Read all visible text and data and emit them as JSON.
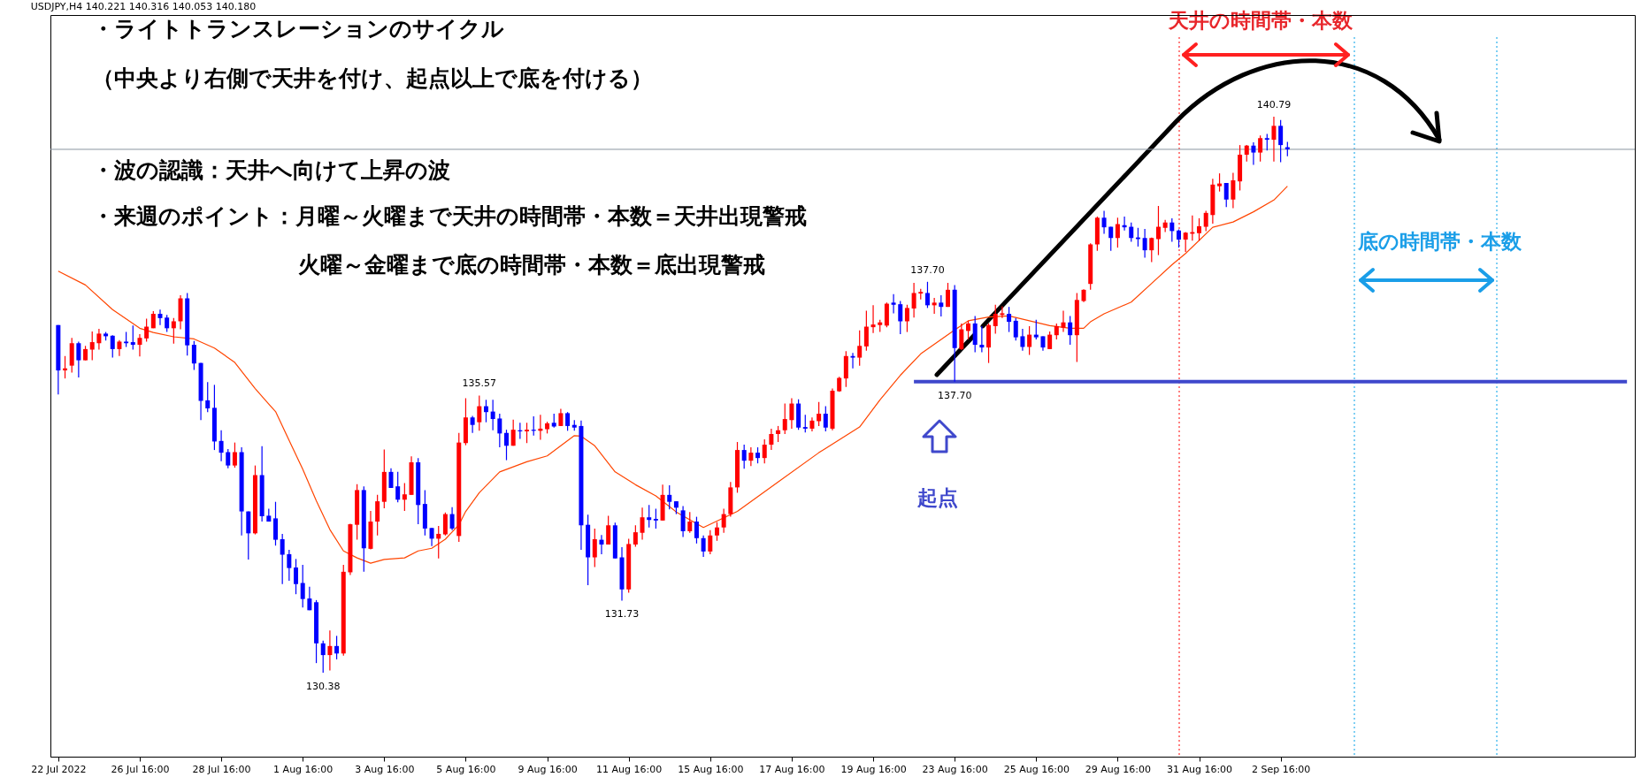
{
  "chart_data": {
    "type": "candlestick",
    "title": "USDJPY,H4  140.221 140.316 140.053 140.180",
    "categories": [
      "22 Jul 2022",
      null,
      null,
      null,
      null,
      null,
      null,
      null,
      null,
      null,
      null,
      null,
      "26 Jul 16:00",
      null,
      null,
      null,
      null,
      null,
      null,
      null,
      null,
      null,
      null,
      null,
      "28 Jul 16:00",
      null,
      null,
      null,
      null,
      null,
      null,
      null,
      null,
      null,
      null,
      null,
      "1 Aug 16:00",
      null,
      null,
      null,
      null,
      null,
      null,
      null,
      null,
      null,
      null,
      null,
      "3 Aug 16:00",
      null,
      null,
      null,
      null,
      null,
      null,
      null,
      null,
      null,
      null,
      null,
      "5 Aug 16:00",
      null,
      null,
      null,
      null,
      null,
      null,
      null,
      null,
      null,
      null,
      null,
      "9 Aug 16:00",
      null,
      null,
      null,
      null,
      null,
      null,
      null,
      null,
      null,
      null,
      null,
      "11 Aug 16:00",
      null,
      null,
      null,
      null,
      null,
      null,
      null,
      null,
      null,
      null,
      null,
      "15 Aug 16:00",
      null,
      null,
      null,
      null,
      null,
      null,
      null,
      null,
      null,
      null,
      null,
      "17 Aug 16:00",
      null,
      null,
      null,
      null,
      null,
      null,
      null,
      null,
      null,
      null,
      null,
      "19 Aug 16:00",
      null,
      null,
      null,
      null,
      null,
      null,
      null,
      null,
      null,
      null,
      null,
      "23 Aug 16:00",
      null,
      null,
      null,
      null,
      null,
      null,
      null,
      null,
      null,
      null,
      null,
      "25 Aug 16:00",
      null,
      null,
      null,
      null,
      null,
      null,
      null,
      null,
      null,
      null,
      null,
      "29 Aug 16:00",
      null,
      null,
      null,
      null,
      null,
      null,
      null,
      null,
      null,
      null,
      null,
      "31 Aug 16:00",
      null,
      null,
      null,
      null,
      null,
      null,
      null,
      null,
      null,
      null,
      null,
      "2 Sep 16:00",
      null,
      null,
      null,
      null,
      null,
      null,
      null,
      null,
      null,
      null,
      null,
      null,
      null,
      null,
      null,
      null,
      null,
      null,
      null,
      null,
      null,
      null,
      null,
      null,
      null,
      null,
      null,
      null,
      null,
      null,
      null,
      null,
      null,
      null,
      null,
      null,
      null,
      null,
      null,
      null,
      null,
      null,
      null,
      null,
      null,
      null,
      null,
      null,
      null,
      null,
      null
    ],
    "ohlc": [
      [
        136.89,
        136.89,
        135.59,
        136.04
      ],
      [
        136.04,
        136.31,
        135.89,
        136.08
      ],
      [
        136.13,
        136.65,
        136.0,
        136.55
      ],
      [
        136.55,
        136.58,
        135.91,
        136.23
      ],
      [
        136.23,
        136.5,
        136.23,
        136.44
      ],
      [
        136.43,
        136.77,
        136.23,
        136.57
      ],
      [
        136.55,
        136.82,
        136.43,
        136.73
      ],
      [
        136.73,
        136.76,
        136.6,
        136.68
      ],
      [
        136.69,
        136.7,
        136.28,
        136.44
      ],
      [
        136.44,
        136.61,
        136.31,
        136.58
      ],
      [
        136.58,
        136.76,
        136.48,
        136.55
      ],
      [
        136.57,
        136.88,
        136.43,
        136.52
      ],
      [
        136.52,
        136.72,
        136.3,
        136.65
      ],
      [
        136.64,
        137.01,
        136.58,
        136.86
      ],
      [
        136.83,
        137.15,
        136.83,
        137.1
      ],
      [
        137.1,
        137.18,
        136.89,
        137.02
      ],
      [
        137.03,
        137.08,
        136.76,
        136.83
      ],
      [
        136.83,
        137.02,
        136.54,
        136.96
      ],
      [
        136.96,
        137.45,
        136.81,
        137.39
      ],
      [
        137.39,
        137.49,
        136.32,
        136.51
      ],
      [
        136.52,
        136.59,
        136.05,
        136.17
      ],
      [
        136.18,
        136.18,
        135.11,
        135.47
      ],
      [
        135.48,
        135.82,
        135.26,
        135.33
      ],
      [
        135.34,
        135.77,
        134.55,
        134.71
      ],
      [
        134.72,
        134.92,
        134.34,
        134.5
      ],
      [
        134.51,
        134.57,
        134.21,
        134.26
      ],
      [
        134.26,
        134.69,
        134.22,
        134.51
      ],
      [
        134.51,
        134.6,
        132.95,
        133.4
      ],
      [
        133.4,
        133.4,
        132.5,
        132.99
      ],
      [
        132.99,
        134.26,
        132.97,
        134.08
      ],
      [
        134.08,
        134.62,
        133.21,
        133.31
      ],
      [
        133.32,
        133.45,
        133.21,
        133.21
      ],
      [
        133.27,
        133.58,
        132.76,
        132.87
      ],
      [
        132.88,
        132.98,
        132.04,
        132.59
      ],
      [
        132.6,
        132.68,
        132.1,
        132.34
      ],
      [
        132.35,
        132.51,
        131.85,
        132.04
      ],
      [
        132.06,
        132.4,
        131.6,
        131.76
      ],
      [
        131.77,
        131.99,
        131.55,
        131.55
      ],
      [
        131.7,
        131.74,
        130.56,
        130.93
      ],
      [
        130.93,
        130.98,
        130.38,
        130.71
      ],
      [
        130.71,
        131.17,
        130.42,
        130.88
      ],
      [
        130.88,
        131.07,
        130.63,
        130.74
      ],
      [
        130.74,
        132.4,
        130.7,
        132.27
      ],
      [
        132.26,
        133.17,
        132.21,
        133.16
      ],
      [
        133.15,
        133.91,
        132.87,
        133.8
      ],
      [
        133.8,
        133.87,
        132.27,
        132.71
      ],
      [
        132.7,
        133.41,
        132.69,
        133.21
      ],
      [
        133.21,
        133.71,
        132.95,
        133.59
      ],
      [
        133.58,
        134.56,
        133.46,
        134.14
      ],
      [
        134.14,
        134.21,
        133.84,
        133.84
      ],
      [
        133.87,
        134.14,
        133.57,
        133.62
      ],
      [
        133.62,
        133.93,
        133.41,
        133.72
      ],
      [
        133.71,
        134.43,
        133.71,
        134.32
      ],
      [
        134.32,
        134.4,
        133.16,
        133.52
      ],
      [
        133.54,
        133.8,
        132.95,
        133.08
      ],
      [
        133.09,
        133.09,
        132.75,
        132.89
      ],
      [
        132.89,
        133.13,
        132.52,
        132.98
      ],
      [
        132.97,
        133.38,
        132.95,
        133.35
      ],
      [
        133.35,
        133.48,
        133.05,
        133.08
      ],
      [
        132.94,
        134.87,
        132.83,
        134.69
      ],
      [
        134.68,
        135.52,
        134.64,
        135.16
      ],
      [
        135.16,
        135.19,
        134.87,
        135.02
      ],
      [
        135.07,
        135.57,
        134.91,
        135.37
      ],
      [
        135.37,
        135.49,
        135.07,
        135.26
      ],
      [
        135.27,
        135.49,
        134.92,
        135.13
      ],
      [
        135.14,
        135.23,
        134.6,
        134.86
      ],
      [
        134.87,
        134.93,
        134.36,
        134.63
      ],
      [
        134.63,
        135.12,
        134.63,
        134.93
      ],
      [
        134.92,
        135.06,
        134.76,
        134.9
      ],
      [
        134.9,
        135.06,
        134.68,
        134.93
      ],
      [
        134.93,
        135.18,
        134.82,
        134.91
      ],
      [
        134.91,
        135.21,
        134.74,
        134.95
      ],
      [
        134.94,
        135.08,
        134.86,
        135.05
      ],
      [
        135.06,
        135.23,
        134.97,
        134.99
      ],
      [
        135.0,
        135.32,
        135.0,
        135.24
      ],
      [
        135.24,
        135.26,
        134.91,
        135.0
      ],
      [
        135.02,
        135.11,
        134.91,
        134.97
      ],
      [
        135.0,
        135.1,
        132.68,
        133.14
      ],
      [
        133.15,
        133.34,
        132.02,
        132.54
      ],
      [
        132.54,
        133.08,
        132.36,
        132.88
      ],
      [
        132.87,
        132.96,
        132.6,
        132.78
      ],
      [
        132.78,
        133.32,
        132.78,
        133.14
      ],
      [
        133.14,
        133.19,
        132.52,
        132.52
      ],
      [
        132.54,
        132.73,
        131.73,
        131.94
      ],
      [
        131.94,
        132.89,
        131.88,
        132.79
      ],
      [
        132.78,
        133.14,
        132.74,
        133.01
      ],
      [
        133.0,
        133.47,
        132.87,
        133.29
      ],
      [
        133.29,
        133.52,
        133.1,
        133.24
      ],
      [
        133.26,
        133.45,
        133.08,
        133.23
      ],
      [
        133.23,
        133.9,
        133.23,
        133.71
      ],
      [
        133.71,
        133.89,
        133.44,
        133.58
      ],
      [
        133.59,
        133.59,
        133.35,
        133.47
      ],
      [
        133.42,
        133.5,
        132.92,
        133.03
      ],
      [
        133.03,
        133.39,
        133.0,
        133.21
      ],
      [
        133.21,
        133.3,
        132.8,
        132.9
      ],
      [
        132.9,
        132.95,
        132.55,
        132.65
      ],
      [
        132.65,
        133.05,
        132.6,
        132.95
      ],
      [
        132.95,
        133.2,
        132.85,
        133.1
      ],
      [
        133.1,
        133.45,
        133.0,
        133.35
      ],
      [
        133.35,
        133.95,
        133.3,
        133.85
      ],
      [
        133.85,
        134.7,
        133.75,
        134.55
      ],
      [
        134.55,
        134.65,
        134.2,
        134.35
      ],
      [
        134.35,
        134.6,
        134.25,
        134.5
      ],
      [
        134.5,
        134.6,
        134.3,
        134.4
      ],
      [
        134.4,
        134.75,
        134.3,
        134.65
      ],
      [
        134.65,
        134.95,
        134.55,
        134.85
      ],
      [
        134.85,
        135.0,
        134.7,
        134.92
      ],
      [
        134.92,
        135.42,
        134.85,
        135.13
      ],
      [
        135.11,
        135.52,
        134.95,
        135.42
      ],
      [
        135.42,
        135.5,
        134.93,
        134.97
      ],
      [
        134.98,
        135.21,
        134.88,
        134.95
      ],
      [
        134.95,
        135.16,
        134.9,
        135.1
      ],
      [
        135.09,
        135.45,
        135.0,
        135.23
      ],
      [
        135.23,
        135.37,
        134.9,
        134.97
      ],
      [
        134.95,
        135.7,
        134.92,
        135.66
      ],
      [
        135.65,
        135.92,
        135.64,
        135.9
      ],
      [
        135.89,
        136.4,
        135.73,
        136.31
      ],
      [
        136.31,
        136.37,
        136.08,
        136.28
      ],
      [
        136.28,
        136.79,
        136.13,
        136.5
      ],
      [
        136.49,
        137.16,
        136.41,
        136.86
      ],
      [
        136.85,
        137.26,
        136.74,
        136.9
      ],
      [
        136.89,
        136.99,
        136.76,
        136.94
      ],
      [
        136.88,
        137.31,
        136.85,
        137.29
      ],
      [
        137.31,
        137.47,
        137.11,
        137.27
      ],
      [
        137.28,
        137.34,
        136.72,
        136.96
      ],
      [
        136.96,
        137.27,
        136.76,
        137.21
      ],
      [
        137.2,
        137.68,
        137.03,
        137.49
      ],
      [
        137.48,
        137.57,
        137.37,
        137.51
      ],
      [
        137.49,
        137.7,
        137.21,
        137.26
      ],
      [
        137.26,
        137.4,
        137.1,
        137.31
      ],
      [
        137.31,
        137.45,
        137.05,
        137.23
      ],
      [
        137.23,
        137.68,
        137.23,
        137.55
      ],
      [
        137.55,
        137.64,
        135.83,
        136.46
      ],
      [
        136.44,
        136.92,
        136.42,
        136.81
      ],
      [
        136.78,
        136.97,
        136.62,
        136.92
      ],
      [
        136.92,
        137.06,
        136.38,
        136.52
      ],
      [
        136.52,
        136.87,
        136.38,
        136.47
      ],
      [
        136.47,
        136.92,
        136.18,
        136.89
      ],
      [
        136.87,
        137.27,
        136.73,
        137.1
      ],
      [
        137.08,
        137.24,
        137.02,
        137.11
      ],
      [
        137.1,
        137.23,
        136.76,
        136.95
      ],
      [
        136.97,
        137.02,
        136.6,
        136.66
      ],
      [
        136.68,
        136.82,
        136.41,
        136.48
      ],
      [
        136.48,
        136.87,
        136.33,
        136.71
      ],
      [
        136.71,
        136.99,
        136.62,
        136.66
      ],
      [
        136.68,
        136.68,
        136.41,
        136.47
      ],
      [
        136.44,
        136.77,
        136.44,
        136.71
      ],
      [
        136.7,
        136.92,
        136.62,
        136.87
      ],
      [
        136.84,
        137.16,
        136.76,
        136.94
      ],
      [
        136.94,
        137.06,
        136.52,
        136.7
      ],
      [
        136.7,
        137.49,
        136.2,
        137.36
      ],
      [
        137.34,
        137.56,
        137.32,
        137.55
      ],
      [
        137.66,
        138.42,
        137.55,
        138.4
      ],
      [
        138.4,
        138.92,
        138.28,
        138.9
      ],
      [
        138.9,
        139.03,
        138.6,
        138.72
      ],
      [
        138.73,
        138.73,
        138.28,
        138.52
      ],
      [
        138.52,
        138.9,
        138.34,
        138.78
      ],
      [
        138.76,
        138.92,
        138.66,
        138.72
      ],
      [
        138.73,
        138.81,
        138.45,
        138.52
      ],
      [
        138.53,
        138.71,
        138.36,
        138.5
      ],
      [
        138.52,
        138.69,
        138.15,
        138.29
      ],
      [
        138.29,
        138.53,
        138.07,
        138.52
      ],
      [
        138.5,
        139.12,
        138.2,
        138.73
      ],
      [
        138.71,
        138.86,
        138.63,
        138.81
      ],
      [
        138.81,
        138.89,
        138.45,
        138.65
      ],
      [
        138.66,
        138.68,
        138.34,
        138.49
      ],
      [
        138.49,
        138.63,
        138.26,
        138.62
      ],
      [
        138.6,
        138.94,
        138.47,
        138.63
      ],
      [
        138.61,
        138.89,
        138.47,
        138.74
      ],
      [
        138.73,
        139.03,
        138.65,
        138.99
      ],
      [
        138.95,
        139.63,
        138.79,
        139.52
      ],
      [
        139.49,
        139.73,
        139.39,
        139.54
      ],
      [
        139.55,
        139.55,
        139.1,
        139.24
      ],
      [
        139.24,
        139.74,
        139.08,
        139.6
      ],
      [
        139.58,
        140.26,
        139.41,
        140.08
      ],
      [
        140.08,
        140.26,
        139.95,
        140.25
      ],
      [
        140.25,
        140.31,
        139.89,
        140.12
      ],
      [
        140.12,
        140.44,
        139.95,
        140.39
      ],
      [
        140.39,
        140.47,
        140.16,
        140.36
      ],
      [
        140.36,
        140.79,
        139.95,
        140.62
      ],
      [
        140.62,
        140.73,
        139.94,
        140.26
      ],
      [
        140.22,
        140.32,
        140.05,
        140.18
      ],
      null,
      null,
      null,
      null,
      null,
      null,
      null,
      null,
      null,
      null,
      null,
      null,
      null,
      null,
      null,
      null,
      null,
      null,
      null,
      null,
      null,
      null,
      null,
      null,
      null,
      null,
      null,
      null,
      null,
      null,
      null,
      null,
      null,
      null,
      null,
      null,
      null,
      null,
      null,
      null,
      null,
      null,
      null,
      null,
      null,
      null,
      null,
      null,
      null,
      null
    ],
    "colors": [
      "#0000ff",
      "#ff0000",
      "#ff0000",
      "#0000ff",
      "#ff0000",
      "#ff0000",
      "#ff0000",
      "#0000ff",
      "#0000ff",
      "#ff0000",
      "#0000ff",
      "#0000ff",
      "#ff0000",
      "#ff0000",
      "#ff0000",
      "#0000ff",
      "#0000ff",
      "#ff0000",
      "#ff0000",
      "#0000ff",
      "#0000ff",
      "#0000ff",
      "#0000ff",
      "#0000ff",
      "#0000ff",
      "#0000ff",
      "#ff0000",
      "#0000ff",
      "#0000ff",
      "#ff0000",
      "#0000ff",
      "#0000ff",
      "#0000ff",
      "#0000ff",
      "#0000ff",
      "#0000ff",
      "#0000ff",
      "#0000ff",
      "#0000ff",
      "#0000ff",
      "#ff0000",
      "#0000ff",
      "#ff0000",
      "#ff0000",
      "#ff0000",
      "#0000ff",
      "#ff0000",
      "#ff0000",
      "#ff0000",
      "#0000ff",
      "#0000ff",
      "#ff0000",
      "#ff0000",
      "#0000ff",
      "#0000ff",
      "#0000ff",
      "#ff0000",
      "#ff0000",
      "#0000ff",
      "#ff0000",
      "#ff0000",
      "#0000ff",
      "#ff0000",
      "#0000ff",
      "#0000ff",
      "#0000ff",
      "#0000ff",
      "#ff0000",
      "#0000ff",
      "#ff0000",
      "#0000ff",
      "#ff0000",
      "#ff0000",
      "#0000ff",
      "#ff0000",
      "#0000ff",
      "#0000ff",
      "#0000ff",
      "#0000ff",
      "#ff0000",
      "#0000ff",
      "#ff0000",
      "#0000ff",
      "#0000ff",
      "#ff0000",
      "#ff0000",
      "#ff0000",
      "#0000ff",
      "#0000ff",
      "#ff0000",
      "#0000ff",
      "#0000ff",
      "#0000ff",
      "#ff0000",
      "#0000ff",
      "#0000ff",
      "#ff0000",
      "#ff0000",
      "#ff0000",
      "#ff0000",
      "#ff0000",
      "#0000ff",
      "#ff0000",
      "#0000ff",
      "#ff0000",
      "#ff0000",
      "#ff0000",
      "#ff0000",
      "#ff0000",
      "#0000ff",
      "#0000ff",
      "#ff0000",
      "#ff0000",
      "#0000ff",
      "#ff0000",
      "#ff0000",
      "#ff0000",
      "#0000ff",
      "#ff0000",
      "#ff0000",
      "#ff0000",
      "#ff0000",
      "#ff0000",
      "#0000ff",
      "#0000ff",
      "#ff0000",
      "#ff0000",
      "#ff0000",
      "#0000ff",
      "#ff0000",
      "#0000ff",
      "#ff0000",
      "#0000ff",
      "#ff0000",
      "#ff0000",
      "#0000ff",
      "#0000ff",
      "#ff0000",
      "#ff0000",
      "#ff0000",
      "#0000ff",
      "#0000ff",
      "#0000ff",
      "#ff0000",
      "#0000ff",
      "#0000ff",
      "#ff0000",
      "#ff0000",
      "#ff0000",
      "#0000ff",
      "#ff0000",
      "#ff0000",
      "#ff0000",
      "#ff0000",
      "#0000ff",
      "#0000ff",
      "#ff0000",
      "#0000ff",
      "#0000ff",
      "#0000ff",
      "#0000ff",
      "#ff0000",
      "#ff0000",
      "#ff0000",
      "#0000ff",
      "#0000ff",
      "#ff0000",
      "#ff0000",
      "#ff0000",
      "#ff0000",
      "#ff0000",
      "#ff0000",
      "#0000ff",
      "#ff0000",
      "#ff0000",
      "#ff0000",
      "#0000ff",
      "#ff0000",
      "#0000ff",
      "#ff0000",
      "#0000ff",
      "#0000ff",
      null,
      null,
      null,
      null,
      null,
      null,
      null,
      null,
      null,
      null,
      null,
      null,
      null,
      null,
      null,
      null,
      null,
      null,
      null,
      null,
      null,
      null,
      null,
      null,
      null,
      null,
      null,
      null,
      null,
      null,
      null,
      null,
      null,
      null,
      null,
      null,
      null,
      null,
      null,
      null,
      null,
      null,
      null,
      null,
      null,
      null,
      null,
      null,
      null,
      null
    ],
    "series": [
      {
        "type": "line",
        "color": "#ff4500",
        "values": [
          137.9,
          null,
          null,
          null,
          137.64,
          null,
          null,
          null,
          137.18,
          null,
          null,
          null,
          136.83,
          null,
          136.75,
          null,
          null,
          136.67,
          null,
          null,
          136.63,
          null,
          null,
          136.46,
          null,
          null,
          136.19,
          null,
          null,
          135.7,
          null,
          135.41,
          135.27,
          null,
          134.73,
          null,
          134.19,
          null,
          133.6,
          null,
          133.06,
          null,
          132.66,
          null,
          132.53,
          null,
          132.43,
          null,
          132.5,
          null,
          null,
          132.53,
          null,
          132.66,
          null,
          132.71,
          null,
          132.88,
          null,
          133.15,
          133.4,
          null,
          133.75,
          null,
          null,
          134.14,
          null,
          null,
          null,
          134.33,
          null,
          null,
          134.44,
          null,
          134.63,
          null,
          134.82,
          134.81,
          null,
          134.63,
          null,
          null,
          134.14,
          null,
          null,
          133.9,
          null,
          null,
          133.69,
          null,
          null,
          133.39,
          null,
          null,
          null,
          133.1,
          null,
          null,
          null,
          null,
          133.4,
          null,
          null,
          null,
          null,
          null,
          133.95,
          null,
          null,
          null,
          null,
          null,
          134.5,
          null,
          null,
          null,
          null,
          null,
          134.98,
          null,
          null,
          135.49,
          null,
          null,
          135.95,
          null,
          null,
          136.35,
          null,
          null,
          null,
          null,
          136.8,
          null,
          136.97,
          null,
          null,
          137.04,
          null,
          null,
          137.06,
          null,
          null,
          136.97,
          null,
          null,
          136.88,
          null,
          null,
          136.83,
          null,
          136.83,
          136.95,
          null,
          137.1,
          null,
          null,
          null,
          137.32,
          null,
          null,
          137.67,
          null,
          null,
          138.02,
          null,
          138.23,
          null,
          null,
          null,
          138.72,
          null,
          null,
          138.82,
          null,
          null,
          139.01,
          null,
          null,
          139.23,
          null,
          139.49,
          null,
          null,
          null,
          null,
          null,
          null,
          null,
          null,
          null,
          null,
          null,
          null,
          null,
          null,
          null,
          null,
          null,
          null,
          null,
          null,
          null,
          null,
          null,
          null,
          null,
          null,
          null,
          null,
          null,
          null,
          null,
          null,
          null,
          null,
          null,
          null,
          null,
          null,
          null,
          null,
          null,
          null,
          null,
          null,
          null,
          null,
          null,
          null,
          null,
          null
        ]
      },
      {
        "type": "line",
        "color": "#3f48cc",
        "values": [
          null,
          null,
          null,
          null,
          null,
          null,
          null,
          null,
          null,
          null,
          null,
          null,
          null,
          null,
          null,
          null,
          null,
          null,
          null,
          null,
          null,
          null,
          null,
          null,
          null,
          null,
          null,
          null,
          null,
          null,
          null,
          null,
          null,
          null,
          null,
          null,
          null,
          null,
          null,
          null,
          null,
          null,
          null,
          null,
          null,
          null,
          null,
          null,
          null,
          null,
          null,
          null,
          null,
          null,
          null,
          null,
          null,
          null,
          null,
          null,
          null,
          null,
          null,
          null,
          null,
          null,
          null,
          null,
          null,
          null,
          null,
          null,
          null,
          null,
          null,
          null,
          null,
          null,
          null,
          null,
          null,
          null,
          null,
          null,
          null,
          null,
          null,
          null,
          null,
          null,
          null,
          null,
          null,
          null,
          null,
          null,
          null,
          null,
          null,
          null,
          null,
          null,
          null,
          null,
          null,
          null,
          null,
          null,
          null,
          null,
          null,
          null,
          null,
          null,
          null,
          null,
          null,
          null,
          null,
          null,
          null,
          null,
          null,
          null,
          null,
          null,
          135.83,
          null,
          null,
          null,
          null,
          null,
          null,
          null,
          null,
          null,
          null,
          null,
          null,
          null,
          null,
          null,
          null,
          null,
          null,
          null,
          null,
          null,
          null,
          null,
          null,
          null,
          null,
          null,
          null,
          null,
          null,
          null,
          null,
          null,
          null,
          null,
          null,
          null,
          null,
          null,
          null,
          null,
          null,
          null,
          null,
          null,
          null,
          null,
          null,
          null,
          null,
          null,
          null,
          null,
          null,
          null,
          null,
          null,
          null,
          null,
          null,
          null,
          null,
          null,
          null,
          null,
          null,
          null,
          null,
          null,
          null,
          null,
          null,
          null,
          null,
          null,
          null,
          null,
          null,
          null,
          null,
          null,
          null,
          null,
          null,
          null,
          null,
          null,
          null,
          null,
          null,
          null,
          null,
          null,
          null,
          null,
          null,
          null,
          null,
          null,
          null,
          null,
          null,
          null,
          null,
          135.83
        ]
      }
    ],
    "tick_labels": "x",
    "ref_lines": [
      {
        "axis": "y",
        "value": 140.18,
        "color": "#8a94a0",
        "line_style": "solid"
      }
    ],
    "annotations": [
      "・ライトトランスレーションのサイクル",
      "（中央より右側で天井を付け、起点以上で底を付ける）",
      "・波の認識：天井へ向けて上昇の波",
      "・来週のポイント：月曜～火曜まで天井の時間帯・本数＝天井出現警戒",
      "火曜～金曜まで底の時間帯・本数＝底出現警戒",
      "天井の時間帯・本数",
      "底の時間帯・本数",
      "起点",
      {
        "text": "140.79",
        "y": 140.79
      },
      {
        "text": "137.70",
        "y": 137.7
      },
      {
        "text": "137.70",
        "y": 135.83
      },
      {
        "text": "135.57",
        "y": 135.57
      },
      {
        "text": "131.73",
        "y": 131.73
      },
      {
        "text": "130.38",
        "y": 130.38
      }
    ],
    "grid": false
  }
}
